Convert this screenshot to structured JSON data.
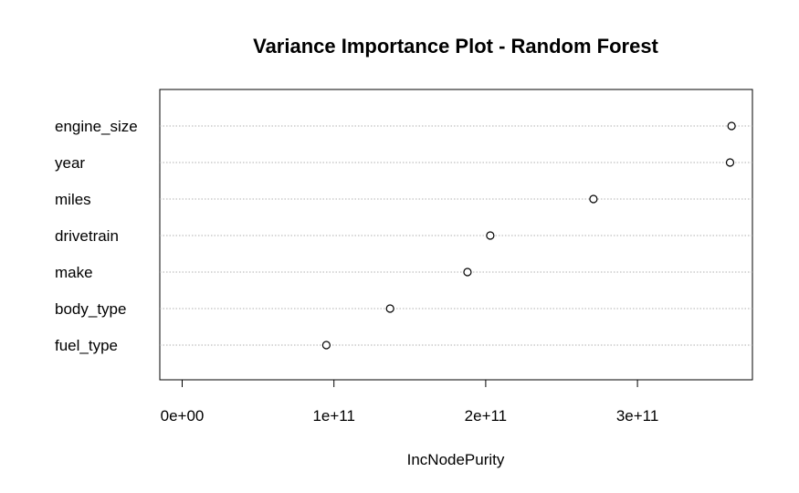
{
  "chart_data": {
    "type": "scatter",
    "subtype": "dotchart",
    "title": "Variance Importance Plot - Random Forest",
    "xlabel": "IncNodePurity",
    "ylabel": "",
    "categories": [
      "engine_size",
      "year",
      "miles",
      "drivetrain",
      "make",
      "body_type",
      "fuel_type"
    ],
    "values": [
      362000000000.0,
      361000000000.0,
      271000000000.0,
      203000000000.0,
      188000000000.0,
      137000000000.0,
      95000000000.0
    ],
    "xlim": [
      -15000000000.0,
      375000000000.0
    ],
    "xticks": [
      0,
      100000000000.0,
      200000000000.0,
      300000000000.0
    ],
    "xtick_labels": [
      "0e+00",
      "1e+11",
      "2e+11",
      "3e+11"
    ],
    "grid": "dotted horizontal lines per category",
    "legend": "none"
  }
}
